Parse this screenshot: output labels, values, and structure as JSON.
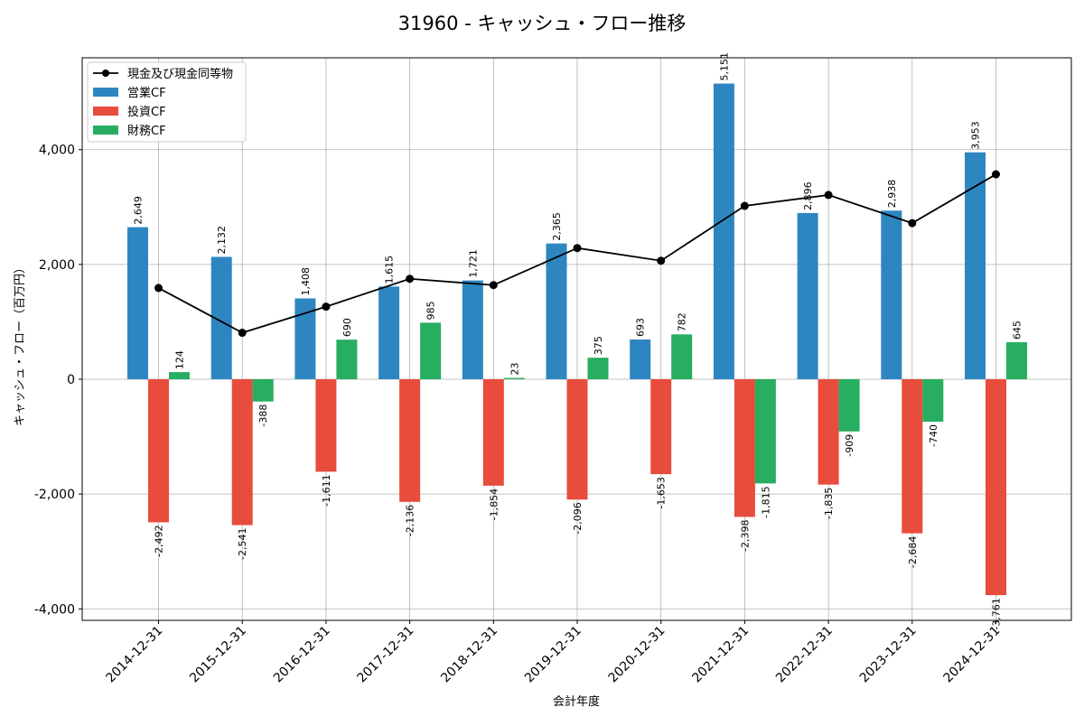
{
  "chart_data": {
    "type": "bar",
    "title": "31960 - キャッシュ・フロー推移",
    "xlabel": "会計年度",
    "ylabel": "キャッシュ・フロー（百万円）",
    "categories": [
      "2014-12-31",
      "2015-12-31",
      "2016-12-31",
      "2017-12-31",
      "2018-12-31",
      "2019-12-31",
      "2020-12-31",
      "2021-12-31",
      "2022-12-31",
      "2023-12-31",
      "2024-12-31"
    ],
    "ylim": [
      -4200,
      5600
    ],
    "yticks": [
      -4000,
      -2000,
      0,
      2000,
      4000
    ],
    "ytick_labels": [
      "-4,000",
      "-2,000",
      "0",
      "2,000",
      "4,000"
    ],
    "grid": true,
    "legend_position": "top-left",
    "series": [
      {
        "name": "営業CF",
        "kind": "bar",
        "color": "#2e86c1",
        "values": [
          2649,
          2132,
          1408,
          1615,
          1721,
          2365,
          693,
          5151,
          2896,
          2938,
          3953
        ],
        "labels": [
          "2,649",
          "2,132",
          "1,408",
          "1,615",
          "1,721",
          "2,365",
          "693",
          "5,151",
          "2,896",
          "2,938",
          "3,953"
        ]
      },
      {
        "name": "投資CF",
        "kind": "bar",
        "color": "#e74c3c",
        "values": [
          -2492,
          -2541,
          -1611,
          -2136,
          -1854,
          -2096,
          -1653,
          -2398,
          -1835,
          -2684,
          -3761
        ],
        "labels": [
          "-2,492",
          "-2,541",
          "-1,611",
          "-2,136",
          "-1,854",
          "-2,096",
          "-1,653",
          "-2,398",
          "-1,835",
          "-2,684",
          "-3,761"
        ]
      },
      {
        "name": "財務CF",
        "kind": "bar",
        "color": "#27ae60",
        "values": [
          124,
          -388,
          690,
          985,
          23,
          375,
          782,
          -1815,
          -909,
          -740,
          645
        ],
        "labels": [
          "124",
          "-388",
          "690",
          "985",
          "23",
          "375",
          "782",
          "-1,815",
          "-909",
          "-740",
          "645"
        ]
      },
      {
        "name": "現金及び現金同等物",
        "kind": "line",
        "color": "#000000",
        "values": [
          1590,
          810,
          1265,
          1750,
          1640,
          2285,
          2065,
          3020,
          3210,
          2720,
          3570
        ]
      }
    ]
  }
}
